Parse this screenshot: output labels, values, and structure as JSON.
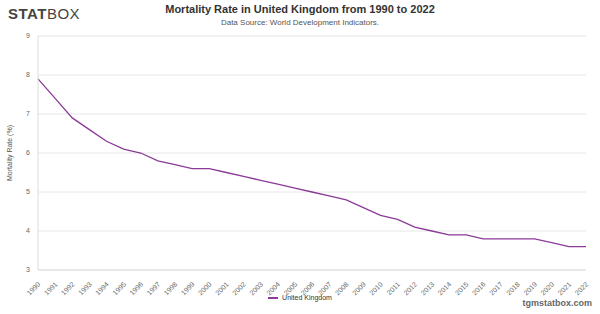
{
  "brand": "STATBOX",
  "watermark": "tgmstatbox.com",
  "chart_data": {
    "type": "line",
    "title": "Mortality Rate in United Kingdom from 1990 to 2022",
    "subtitle": "Data Source: World Development Indicators.",
    "y_label": "Mortality Rate (%)",
    "categories": [
      "1990",
      "1991",
      "1992",
      "1993",
      "1994",
      "1995",
      "1996",
      "1997",
      "1998",
      "1999",
      "2000",
      "2001",
      "2002",
      "2003",
      "2004",
      "2005",
      "2006",
      "2007",
      "2008",
      "2009",
      "2010",
      "2011",
      "2012",
      "2013",
      "2014",
      "2015",
      "2016",
      "2017",
      "2018",
      "2019",
      "2020",
      "2021",
      "2022"
    ],
    "series": [
      {
        "name": "United Kingdom",
        "color": "#8b3a98",
        "values": [
          7.9,
          7.4,
          6.9,
          6.6,
          6.3,
          6.1,
          6.0,
          5.8,
          5.7,
          5.6,
          5.6,
          5.5,
          5.4,
          5.3,
          5.2,
          5.1,
          5.0,
          4.9,
          4.8,
          4.6,
          4.4,
          4.3,
          4.1,
          4.0,
          3.9,
          3.9,
          3.8,
          3.8,
          3.8,
          3.8,
          3.7,
          3.6,
          3.6
        ]
      }
    ],
    "ylim": [
      3,
      9
    ],
    "yticks": [
      3,
      4,
      5,
      6,
      7,
      8,
      9
    ],
    "grid": true,
    "legend": "bottom"
  }
}
